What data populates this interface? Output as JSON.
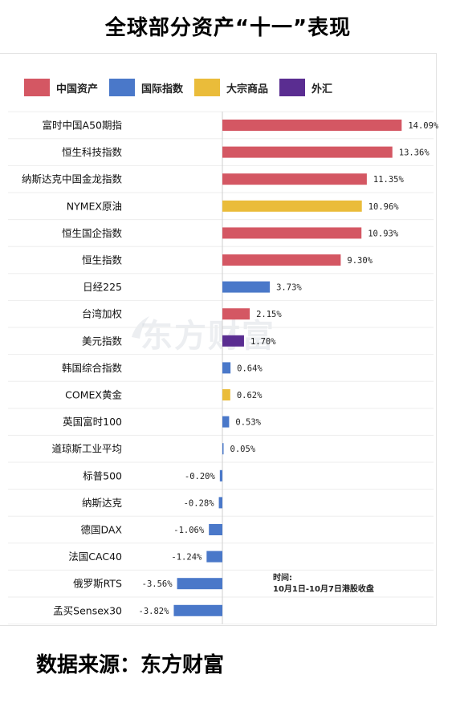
{
  "title": "全球部分资产“十一”表现",
  "legend": [
    {
      "label": "中国资产",
      "color": "#d45763"
    },
    {
      "label": "国际指数",
      "color": "#4a78c9"
    },
    {
      "label": "大宗商品",
      "color": "#eabc3a"
    },
    {
      "label": "外汇",
      "color": "#5a2d91"
    }
  ],
  "chart_data": {
    "type": "bar",
    "orientation": "horizontal",
    "unit": "%",
    "categories": [
      "富时中国A50期指",
      "恒生科技指数",
      "纳斯达克中国金龙指数",
      "NYMEX原油",
      "恒生国企指数",
      "恒生指数",
      "日经225",
      "台湾加权",
      "美元指数",
      "韩国综合指数",
      "COMEX黄金",
      "英国富时100",
      "道琼斯工业平均",
      "标普500",
      "纳斯达克",
      "德国DAX",
      "法国CAC40",
      "俄罗斯RTS",
      "孟买Sensex30"
    ],
    "values": [
      14.09,
      13.36,
      11.35,
      10.96,
      10.93,
      9.3,
      3.73,
      2.15,
      1.7,
      0.64,
      0.62,
      0.53,
      0.05,
      -0.2,
      -0.28,
      -1.06,
      -1.24,
      -3.56,
      -3.82
    ],
    "value_labels": [
      "14.09%",
      "13.36%",
      "11.35%",
      "10.96%",
      "10.93%",
      "9.30%",
      "3.73%",
      "2.15%",
      "1.70%",
      "0.64%",
      "0.62%",
      "0.53%",
      "0.05%",
      "-0.20%",
      "-0.28%",
      "-1.06%",
      "-1.24%",
      "-3.56%",
      "-3.82%"
    ],
    "groups": [
      "中国资产",
      "中国资产",
      "中国资产",
      "大宗商品",
      "中国资产",
      "中国资产",
      "国际指数",
      "中国资产",
      "外汇",
      "国际指数",
      "大宗商品",
      "国际指数",
      "国际指数",
      "国际指数",
      "国际指数",
      "国际指数",
      "国际指数",
      "国际指数",
      "国际指数"
    ],
    "xlim": [
      -4,
      14.5
    ],
    "grid": true
  },
  "watermark": "东方财富",
  "note": {
    "line1": "时间:",
    "line2": "10月1日-10月7日港股收盘"
  },
  "source": "数据来源：东方财富"
}
